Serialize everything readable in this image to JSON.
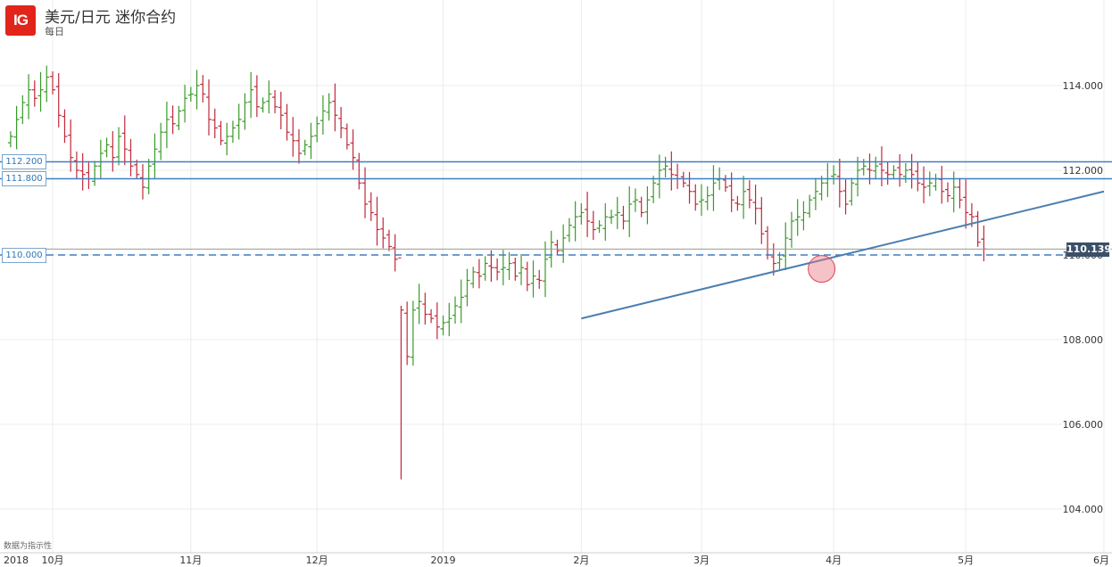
{
  "header": {
    "logo": "IG",
    "title": "美元/日元 迷你合约",
    "subtitle": "每日"
  },
  "footnote": "数据为指示性",
  "price_label": "110.139",
  "chart_data": {
    "type": "ohlc",
    "title": "美元/日元 迷你合约",
    "subtitle": "每日",
    "y_ticks": [
      "104.000",
      "106.000",
      "108.000",
      "110.000",
      "112.000",
      "114.000"
    ],
    "y_range": [
      103.8,
      115.5
    ],
    "x_ticks": [
      {
        "label": "2018",
        "i": -9
      },
      {
        "label": "10月",
        "i": 0
      },
      {
        "label": "11月",
        "i": 23
      },
      {
        "label": "12月",
        "i": 44
      },
      {
        "label": "2019",
        "i": 65
      },
      {
        "label": "2月",
        "i": 88
      },
      {
        "label": "3月",
        "i": 108
      },
      {
        "label": "4月",
        "i": 130
      },
      {
        "label": "5月",
        "i": 152
      },
      {
        "label": "6月",
        "i": 175
      }
    ],
    "x_range": [
      -9,
      175
    ],
    "horizontal_levels": [
      {
        "value": 112.2,
        "label": "112.200",
        "style": "solid",
        "color": "#3f7fbf"
      },
      {
        "value": 111.8,
        "label": "111.800",
        "style": "solid",
        "color": "#3f7fbf"
      },
      {
        "value": 110.0,
        "label": "110.000",
        "style": "dashed",
        "color": "#3f7fbf"
      },
      {
        "value": 110.139,
        "label": "",
        "style": "thin",
        "color": "#999999"
      }
    ],
    "trendline": {
      "from": [
        88,
        108.5
      ],
      "to": [
        175,
        111.5
      ],
      "color": "#4a7fb0"
    },
    "highlight": {
      "i": 128,
      "value": 109.67
    },
    "colors": {
      "up": "#3a9a2a",
      "down": "#c0283a",
      "grid": "#ececec",
      "axis_text": "#333333"
    },
    "closes": [
      112.8,
      113.2,
      113.6,
      113.9,
      113.7,
      113.9,
      114.2,
      113.9,
      113.3,
      112.8,
      112.3,
      112.0,
      111.9,
      111.8,
      112.1,
      112.4,
      112.6,
      112.3,
      112.8,
      112.5,
      112.1,
      111.9,
      111.6,
      112.1,
      112.5,
      112.9,
      113.2,
      113.1,
      113.4,
      113.7,
      113.8,
      114.0,
      113.8,
      113.2,
      113.0,
      112.7,
      112.8,
      113.0,
      113.2,
      113.6,
      113.9,
      113.5,
      113.6,
      113.8,
      113.5,
      113.3,
      112.9,
      112.7,
      112.4,
      112.6,
      112.8,
      113.1,
      113.4,
      113.6,
      113.3,
      113.0,
      112.6,
      112.3,
      111.7,
      111.2,
      111.0,
      110.6,
      110.4,
      110.2,
      109.9,
      108.7,
      107.6,
      108.7,
      108.9,
      108.6,
      108.5,
      108.3,
      108.4,
      108.5,
      108.8,
      109.0,
      109.4,
      109.6,
      109.5,
      109.8,
      109.7,
      109.6,
      109.7,
      109.8,
      109.5,
      109.7,
      109.3,
      109.5,
      109.4,
      109.9,
      110.3,
      110.1,
      110.4,
      110.7,
      110.9,
      111.0,
      110.8,
      110.6,
      110.7,
      110.9,
      110.9,
      111.0,
      110.8,
      111.2,
      111.3,
      111.0,
      111.3,
      111.7,
      112.0,
      112.1,
      111.9,
      111.8,
      111.7,
      111.5,
      111.2,
      111.3,
      111.4,
      111.7,
      111.8,
      111.6,
      111.3,
      111.2,
      111.5,
      111.3,
      111.1,
      110.5,
      110.0,
      109.8,
      109.9,
      110.4,
      110.8,
      110.9,
      111.0,
      111.3,
      111.5,
      111.7,
      111.8,
      111.9,
      111.5,
      111.2,
      111.7,
      112.0,
      112.1,
      112.0,
      112.1,
      112.0,
      111.9,
      112.0,
      111.9,
      112.0,
      111.9,
      111.7,
      111.6,
      111.7,
      111.8,
      111.5,
      111.4,
      111.6,
      111.3,
      111.0,
      110.9,
      110.3,
      110.139
    ]
  }
}
